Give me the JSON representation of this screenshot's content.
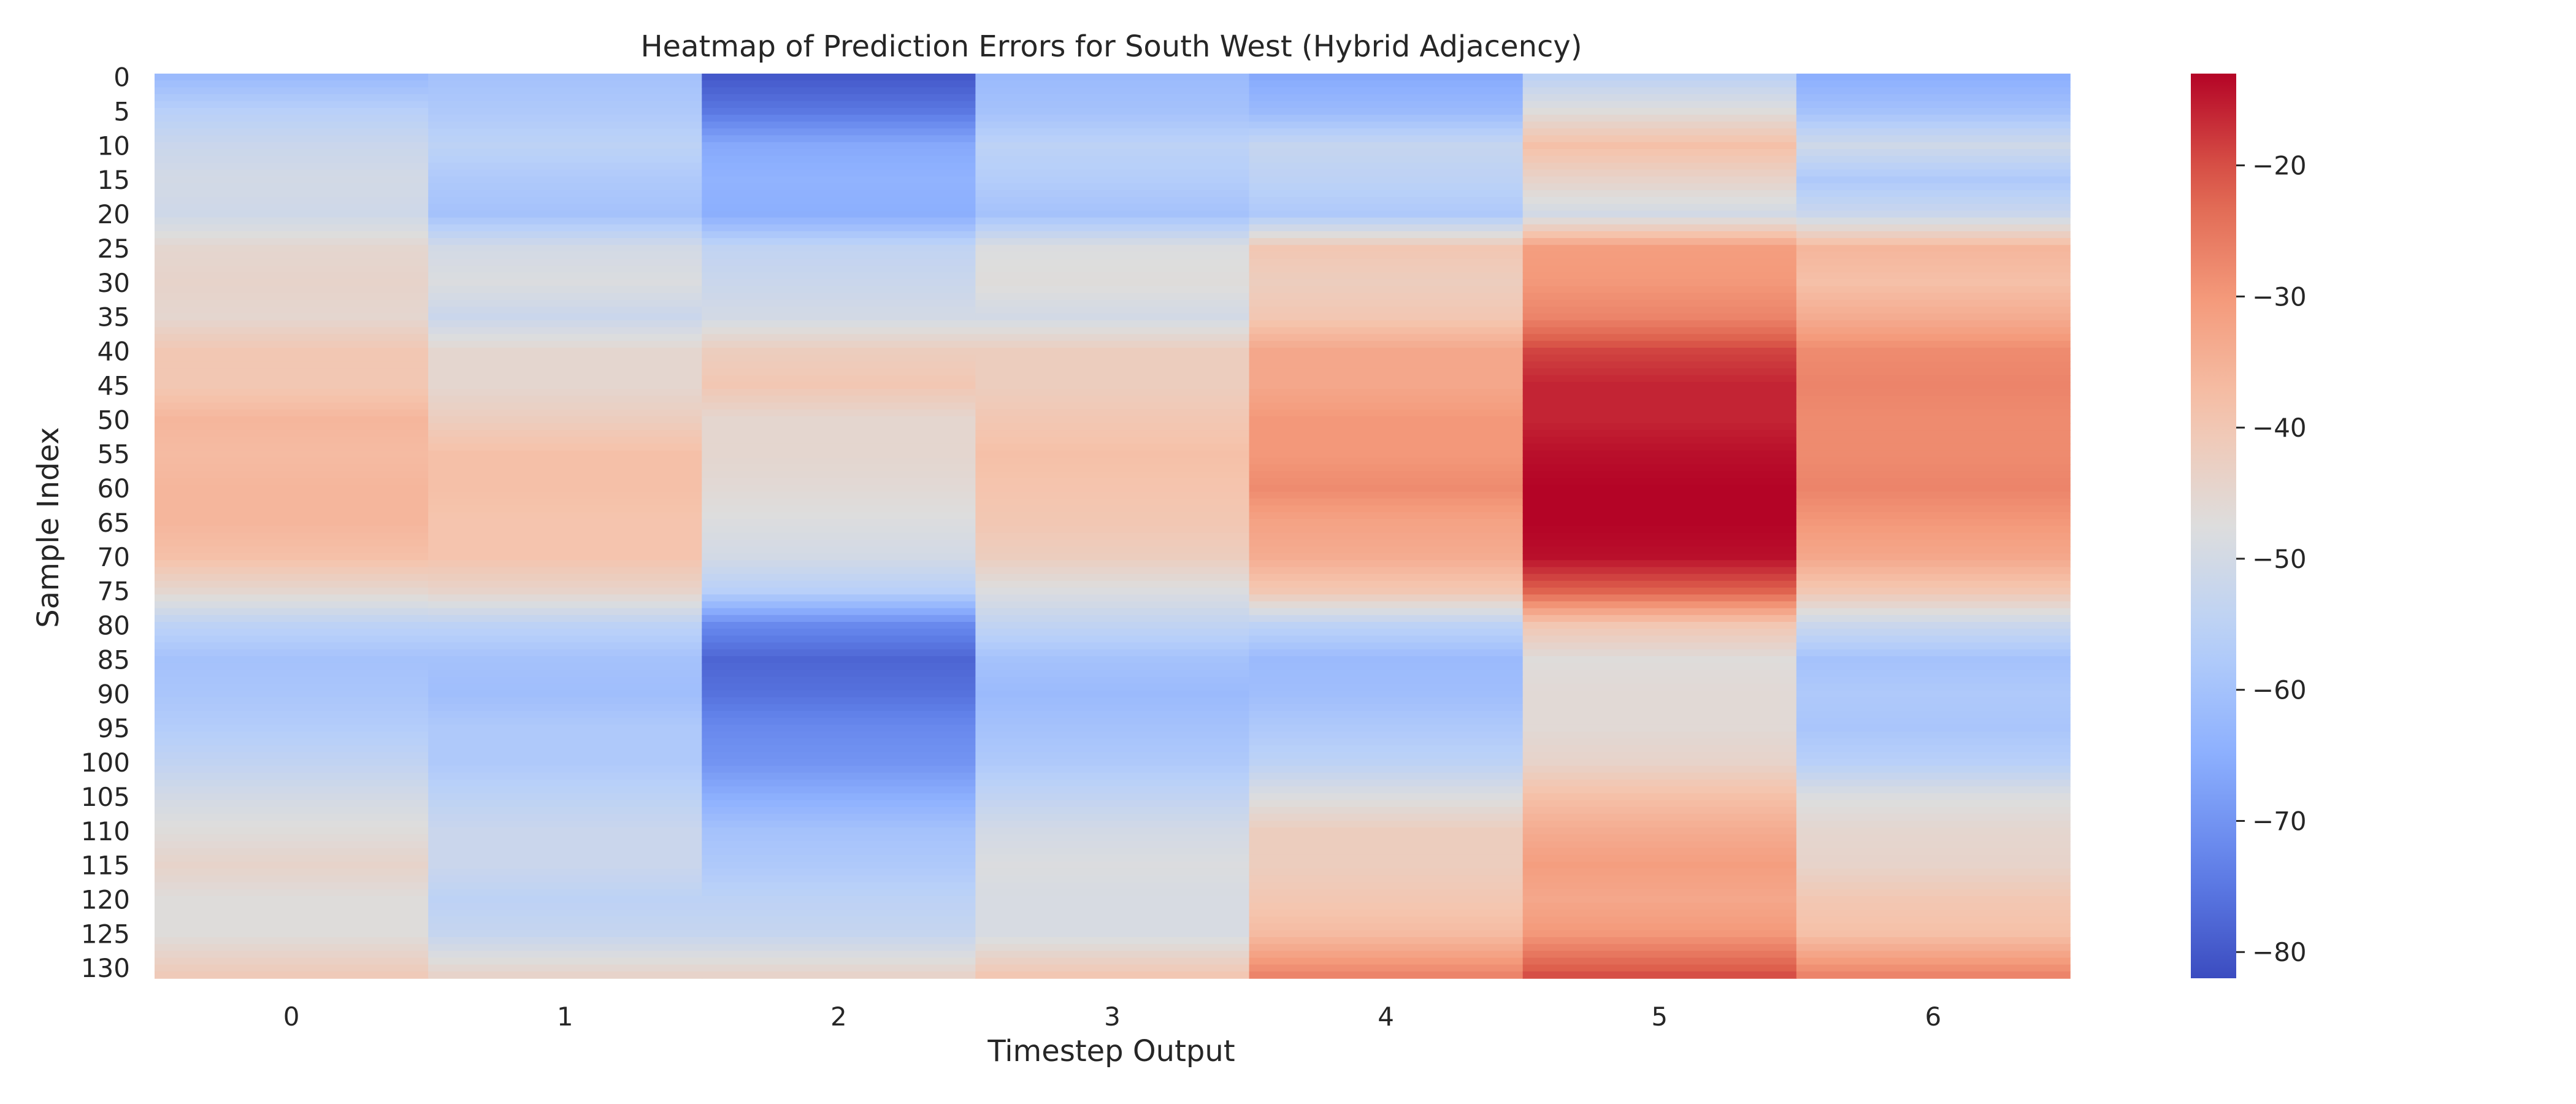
{
  "chart_data": {
    "type": "heatmap",
    "title": "Heatmap of Prediction Errors for South West (Hybrid Adjacency)",
    "xlabel": "Timestep Output",
    "ylabel": "Sample Index",
    "x_categories": [
      "0",
      "1",
      "2",
      "3",
      "4",
      "5",
      "6"
    ],
    "y_tick_labels": [
      "0",
      "5",
      "10",
      "15",
      "20",
      "25",
      "30",
      "35",
      "40",
      "45",
      "50",
      "55",
      "60",
      "65",
      "70",
      "75",
      "80",
      "85",
      "90",
      "95",
      "100",
      "105",
      "110",
      "115",
      "120",
      "125",
      "130"
    ],
    "n_rows": 132,
    "colormap": "coolwarm",
    "colorbar": {
      "vmin": -82,
      "vmax": -13,
      "ticks": [
        -20,
        -30,
        -40,
        -50,
        -60,
        -70,
        -80
      ],
      "tick_labels": [
        "−20",
        "−30",
        "−40",
        "−50",
        "−60",
        "−70",
        "−80"
      ]
    },
    "control_rows": [
      0,
      5,
      10,
      15,
      20,
      25,
      30,
      35,
      40,
      45,
      50,
      55,
      60,
      65,
      70,
      75,
      80,
      85,
      90,
      95,
      100,
      105,
      110,
      115,
      120,
      125,
      131
    ],
    "series": [
      {
        "column": "0",
        "values": [
          -62,
          -56,
          -52,
          -50,
          -51,
          -45,
          -44,
          -45,
          -40,
          -40,
          -36,
          -37,
          -36,
          -36,
          -38,
          -45,
          -55,
          -60,
          -59,
          -57,
          -54,
          -50,
          -47,
          -44,
          -47,
          -47,
          -41
        ]
      },
      {
        "column": "1",
        "values": [
          -60,
          -58,
          -55,
          -58,
          -60,
          -50,
          -48,
          -52,
          -45,
          -45,
          -42,
          -38,
          -38,
          -39,
          -39,
          -44,
          -55,
          -60,
          -61,
          -58,
          -58,
          -55,
          -52,
          -52,
          -55,
          -53,
          -44
        ]
      },
      {
        "column": "2",
        "values": [
          -80,
          -75,
          -66,
          -64,
          -65,
          -54,
          -52,
          -50,
          -42,
          -40,
          -45,
          -45,
          -46,
          -48,
          -50,
          -56,
          -72,
          -78,
          -76,
          -72,
          -70,
          -65,
          -60,
          -58,
          -55,
          -53,
          -44
        ]
      },
      {
        "column": "3",
        "values": [
          -62,
          -60,
          -55,
          -57,
          -60,
          -48,
          -47,
          -50,
          -42,
          -42,
          -40,
          -38,
          -39,
          -40,
          -42,
          -48,
          -54,
          -60,
          -62,
          -60,
          -58,
          -54,
          -50,
          -48,
          -49,
          -49,
          -40
        ]
      },
      {
        "column": "4",
        "values": [
          -66,
          -62,
          -53,
          -55,
          -58,
          -40,
          -42,
          -40,
          -33,
          -33,
          -30,
          -30,
          -28,
          -32,
          -34,
          -40,
          -55,
          -62,
          -61,
          -58,
          -55,
          -48,
          -42,
          -42,
          -40,
          -37,
          -27
        ]
      },
      {
        "column": "5",
        "values": [
          -55,
          -47,
          -38,
          -44,
          -50,
          -31,
          -30,
          -27,
          -19,
          -16,
          -16,
          -14,
          -13,
          -13,
          -14,
          -22,
          -40,
          -47,
          -46,
          -46,
          -44,
          -38,
          -34,
          -31,
          -33,
          -30,
          -20
        ]
      },
      {
        "column": "6",
        "values": [
          -65,
          -60,
          -51,
          -58,
          -52,
          -36,
          -38,
          -34,
          -28,
          -27,
          -28,
          -28,
          -27,
          -30,
          -33,
          -40,
          -52,
          -60,
          -58,
          -59,
          -56,
          -48,
          -45,
          -44,
          -40,
          -38,
          -27
        ]
      }
    ]
  }
}
